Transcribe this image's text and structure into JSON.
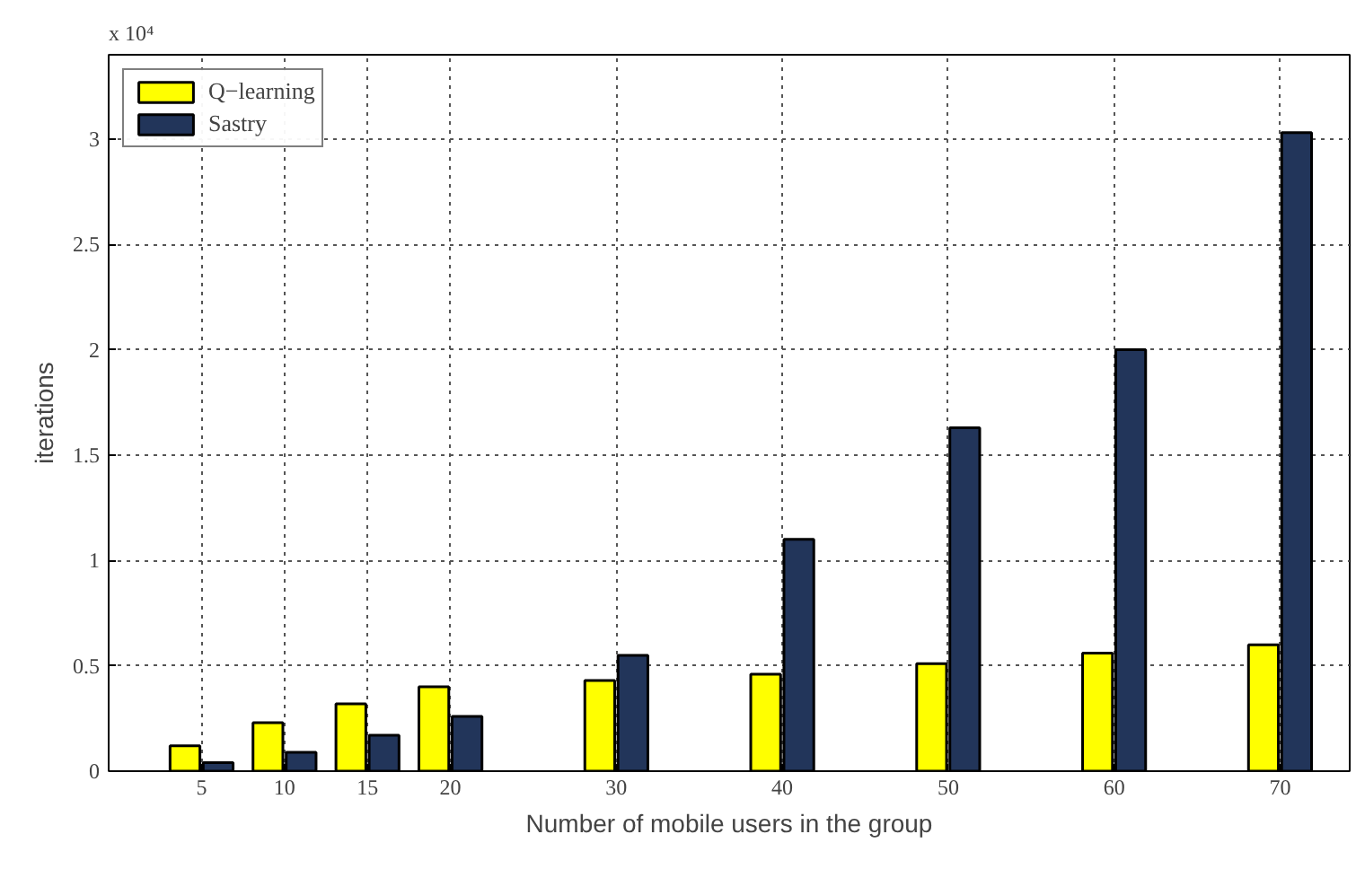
{
  "chart_data": {
    "type": "bar",
    "xlabel": "Number of mobile users in the group",
    "ylabel": "iterations",
    "annotations": [
      "x 10⁴"
    ],
    "x": [
      5,
      10,
      15,
      20,
      30,
      40,
      50,
      60,
      70
    ],
    "series": [
      {
        "name": "Q−learning",
        "color": "#ffff00",
        "values": [
          0.12,
          0.23,
          0.32,
          0.4,
          0.43,
          0.46,
          0.51,
          0.56,
          0.6
        ]
      },
      {
        "name": "Sastry",
        "color": "#22355a",
        "values": [
          0.04,
          0.09,
          0.17,
          0.26,
          0.55,
          1.1,
          1.63,
          2.0,
          3.03
        ]
      }
    ],
    "xlim": [
      -0.6,
      74.2
    ],
    "xticks": [
      5,
      10,
      15,
      20,
      30,
      40,
      50,
      60,
      70
    ],
    "ylim": [
      0,
      3.4
    ],
    "yticks": [
      0,
      0.5,
      1,
      1.5,
      2,
      2.5,
      3
    ],
    "grid": true,
    "legend": "top left"
  }
}
